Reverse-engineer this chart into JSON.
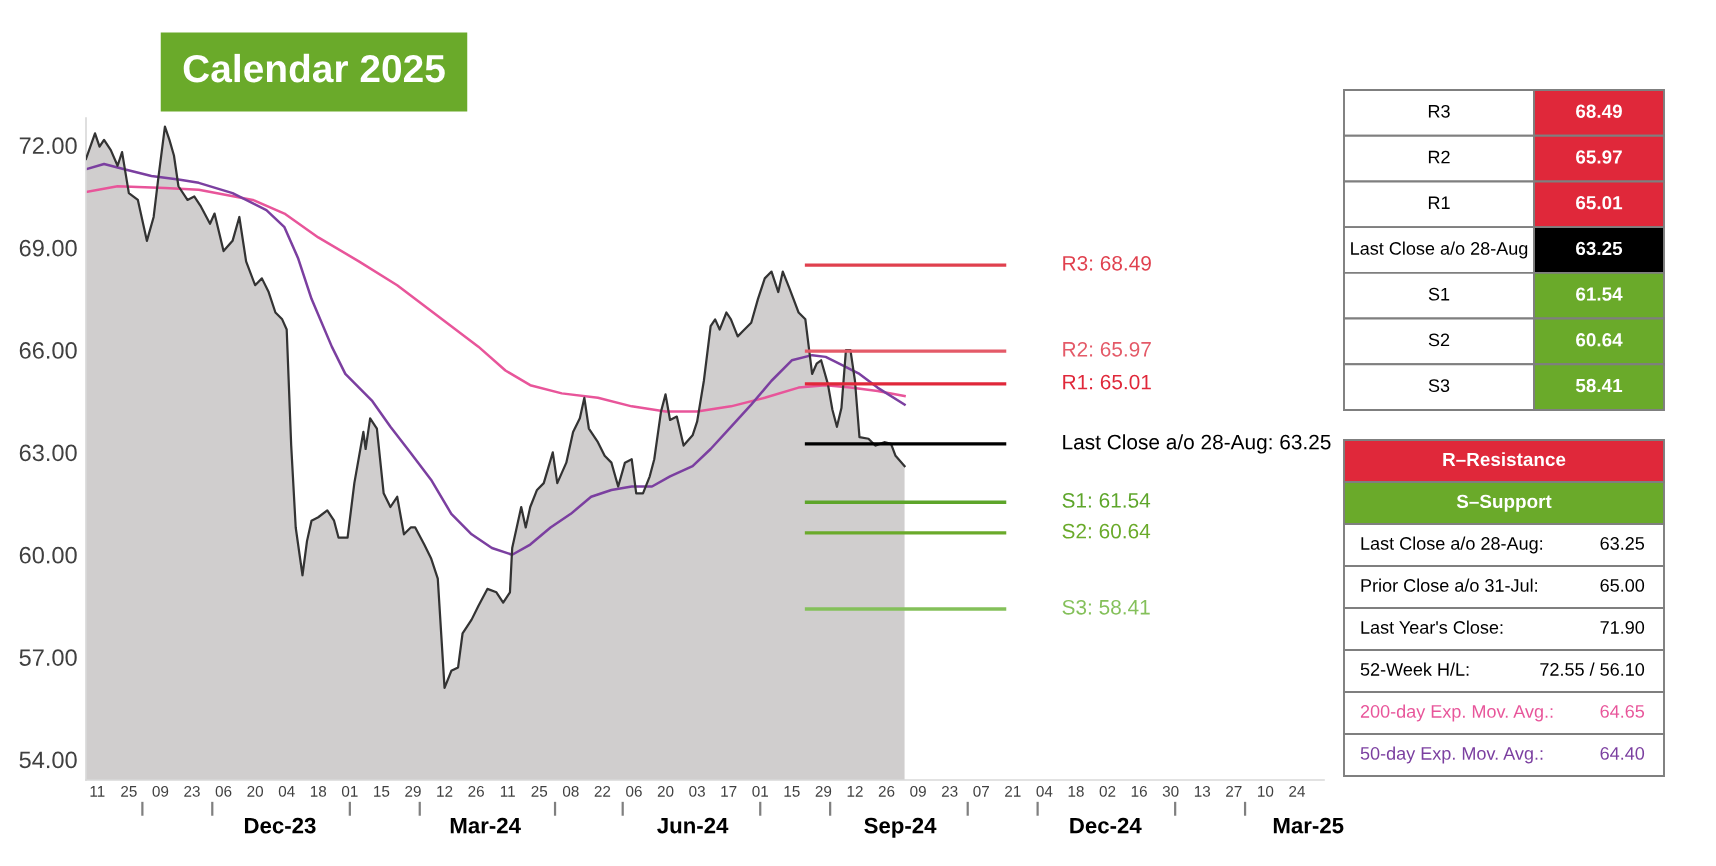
{
  "chart_data": [
    {
      "type": "area",
      "title": "Calendar 2025",
      "x": [
        "2023-09-06",
        "2023-09-10",
        "2023-09-12",
        "2023-09-14",
        "2023-09-17",
        "2023-09-20",
        "2023-09-22",
        "2023-09-25",
        "2023-09-29",
        "2023-10-03",
        "2023-10-06",
        "2023-10-08",
        "2023-10-11",
        "2023-10-13",
        "2023-10-15",
        "2023-10-17",
        "2023-10-21",
        "2023-10-24",
        "2023-10-27",
        "2023-10-31",
        "2023-11-02",
        "2023-11-06",
        "2023-11-10",
        "2023-11-13",
        "2023-11-16",
        "2023-11-20",
        "2023-11-23",
        "2023-11-26",
        "2023-11-29",
        "2023-12-02",
        "2023-12-04",
        "2023-12-06",
        "2023-12-08",
        "2023-12-11",
        "2023-12-13",
        "2023-12-15",
        "2023-12-18",
        "2023-12-22",
        "2023-12-25",
        "2023-12-27",
        "2023-12-31",
        "2024-01-03",
        "2024-01-07",
        "2024-01-08",
        "2024-01-10",
        "2024-01-13",
        "2024-01-16",
        "2024-01-19",
        "2024-01-22",
        "2024-01-25",
        "2024-01-28",
        "2024-01-30",
        "2024-02-03",
        "2024-02-06",
        "2024-02-09",
        "2024-02-12",
        "2024-02-15",
        "2024-02-18",
        "2024-02-20",
        "2024-02-24",
        "2024-02-27",
        "2024-03-02",
        "2024-03-06",
        "2024-03-09",
        "2024-03-12",
        "2024-03-13",
        "2024-03-17",
        "2024-03-19",
        "2024-03-21",
        "2024-03-24",
        "2024-03-27",
        "2024-03-31",
        "2024-04-02",
        "2024-04-06",
        "2024-04-09",
        "2024-04-12",
        "2024-04-14",
        "2024-04-16",
        "2024-04-20",
        "2024-04-23",
        "2024-04-26",
        "2024-04-29",
        "2024-05-02",
        "2024-05-05",
        "2024-05-07",
        "2024-05-10",
        "2024-05-13",
        "2024-05-15",
        "2024-05-18",
        "2024-05-20",
        "2024-05-22",
        "2024-05-25",
        "2024-05-28",
        "2024-06-01",
        "2024-06-03",
        "2024-06-06",
        "2024-06-09",
        "2024-06-11",
        "2024-06-13",
        "2024-06-16",
        "2024-06-18",
        "2024-06-21",
        "2024-06-24",
        "2024-06-27",
        "2024-06-30",
        "2024-07-03",
        "2024-07-06",
        "2024-07-09",
        "2024-07-11",
        "2024-07-14",
        "2024-07-18",
        "2024-07-21",
        "2024-07-24",
        "2024-07-26",
        "2024-07-28",
        "2024-07-31",
        "2024-08-02",
        "2024-08-04",
        "2024-08-06",
        "2024-08-08",
        "2024-08-10",
        "2024-08-12",
        "2024-08-14",
        "2024-08-18",
        "2024-08-21",
        "2024-08-25",
        "2024-08-28",
        "2024-08-30",
        "2024-09-03"
      ],
      "series": [
        {
          "type": "area",
          "color": "#d0cece",
          "values": [
            71.6,
            72.35,
            71.96,
            72.16,
            71.86,
            71.4,
            71.8,
            70.6,
            70.4,
            69.2,
            69.9,
            71.0,
            72.55,
            72.16,
            71.7,
            70.8,
            70.4,
            70.5,
            70.2,
            69.7,
            70.0,
            68.9,
            69.2,
            69.9,
            68.6,
            67.9,
            68.1,
            67.7,
            67.1,
            66.9,
            66.6,
            63.2,
            60.8,
            59.4,
            60.4,
            61.0,
            61.1,
            61.3,
            61.0,
            60.5,
            60.5,
            62.1,
            63.6,
            63.1,
            64.0,
            63.7,
            61.8,
            61.4,
            61.7,
            60.6,
            60.8,
            60.8,
            60.3,
            59.9,
            59.3,
            56.1,
            56.6,
            56.7,
            57.7,
            58.1,
            58.5,
            59.0,
            58.9,
            58.6,
            58.9,
            60.2,
            61.4,
            60.8,
            61.4,
            61.9,
            62.1,
            63.0,
            62.1,
            62.7,
            63.6,
            64.0,
            64.6,
            63.7,
            63.3,
            62.9,
            62.7,
            62.0,
            62.7,
            62.8,
            61.8,
            61.8,
            62.3,
            62.8,
            64.2,
            64.7,
            63.95,
            64.05,
            63.2,
            63.5,
            63.9,
            65.1,
            66.7,
            66.9,
            66.6,
            67.1,
            66.9,
            66.4,
            66.6,
            66.8,
            67.5,
            68.1,
            68.3,
            67.7,
            68.3,
            67.8,
            67.1,
            66.9,
            65.3,
            65.6,
            65.7,
            65.0,
            64.25,
            63.75,
            64.3,
            66.0,
            66.0,
            65.1,
            63.45,
            63.4,
            63.2,
            63.3,
            63.25,
            62.9,
            62.6
          ]
        },
        {
          "type": "line",
          "color": "#e8559a",
          "x": [
            "2023-09-06",
            "2023-09-20",
            "2023-10-11",
            "2023-10-26",
            "2023-11-19",
            "2023-12-03",
            "2023-12-18",
            "2024-01-05",
            "2024-01-22",
            "2024-02-09",
            "2024-02-27",
            "2024-03-10",
            "2024-03-21",
            "2024-04-04",
            "2024-04-20",
            "2024-05-05",
            "2024-05-20",
            "2024-06-03",
            "2024-06-18",
            "2024-07-03",
            "2024-07-18",
            "2024-07-30",
            "2024-08-10",
            "2024-08-22",
            "2024-09-03"
          ],
          "values": [
            70.63,
            70.8,
            70.75,
            70.7,
            70.4,
            70.0,
            69.3,
            68.6,
            67.9,
            67.0,
            66.1,
            65.4,
            64.97,
            64.73,
            64.6,
            64.35,
            64.2,
            64.2,
            64.35,
            64.6,
            64.9,
            64.97,
            64.9,
            64.8,
            64.65
          ]
        },
        {
          "type": "line",
          "color": "#7b3fa0",
          "x": [
            "2023-09-06",
            "2023-09-14",
            "2023-09-23",
            "2023-10-05",
            "2023-10-17",
            "2023-10-26",
            "2023-11-10",
            "2023-11-25",
            "2023-12-03",
            "2023-12-09",
            "2023-12-15",
            "2023-12-24",
            "2023-12-30",
            "2024-01-11",
            "2024-01-19",
            "2024-01-28",
            "2024-02-06",
            "2024-02-15",
            "2024-02-24",
            "2024-03-04",
            "2024-03-13",
            "2024-03-21",
            "2024-03-30",
            "2024-04-08",
            "2024-04-17",
            "2024-04-26",
            "2024-05-05",
            "2024-05-14",
            "2024-05-22",
            "2024-06-01",
            "2024-06-09",
            "2024-06-18",
            "2024-06-27",
            "2024-07-06",
            "2024-07-15",
            "2024-07-24",
            "2024-07-30",
            "2024-08-05",
            "2024-08-14",
            "2024-08-22",
            "2024-09-03"
          ],
          "values": [
            71.3,
            71.45,
            71.3,
            71.1,
            71.0,
            70.9,
            70.6,
            70.1,
            69.6,
            68.7,
            67.5,
            66.1,
            65.3,
            64.5,
            63.75,
            62.98,
            62.2,
            61.2,
            60.6,
            60.2,
            60.0,
            60.3,
            60.8,
            61.2,
            61.7,
            61.9,
            62.0,
            62.0,
            62.3,
            62.6,
            63.1,
            63.75,
            64.4,
            65.1,
            65.7,
            65.85,
            65.8,
            65.6,
            65.3,
            64.9,
            64.4
          ]
        }
      ],
      "xlim": [
        "2023-09-06",
        "2025-03-08"
      ],
      "xticks": [
        {
          "value": "2023-09-11",
          "label": "11"
        },
        {
          "value": "2023-09-25",
          "label": "25"
        },
        {
          "value": "2023-10-09",
          "label": "09"
        },
        {
          "value": "2023-10-23",
          "label": "23"
        },
        {
          "value": "2023-11-06",
          "label": "06"
        },
        {
          "value": "2023-11-20",
          "label": "20"
        },
        {
          "value": "2023-12-04",
          "label": "04"
        },
        {
          "value": "2023-12-18",
          "label": "18"
        },
        {
          "value": "2024-01-01",
          "label": "01"
        },
        {
          "value": "2024-01-15",
          "label": "15"
        },
        {
          "value": "2024-01-29",
          "label": "29"
        },
        {
          "value": "2024-02-12",
          "label": "12"
        },
        {
          "value": "2024-02-26",
          "label": "26"
        },
        {
          "value": "2024-03-11",
          "label": "11"
        },
        {
          "value": "2024-03-25",
          "label": "25"
        },
        {
          "value": "2024-04-08",
          "label": "08"
        },
        {
          "value": "2024-04-22",
          "label": "22"
        },
        {
          "value": "2024-05-06",
          "label": "06"
        },
        {
          "value": "2024-05-20",
          "label": "20"
        },
        {
          "value": "2024-06-03",
          "label": "03"
        },
        {
          "value": "2024-06-17",
          "label": "17"
        },
        {
          "value": "2024-07-01",
          "label": "01"
        },
        {
          "value": "2024-07-15",
          "label": "15"
        },
        {
          "value": "2024-07-29",
          "label": "29"
        },
        {
          "value": "2024-08-12",
          "label": "12"
        },
        {
          "value": "2024-08-26",
          "label": "26"
        },
        {
          "value": "2024-09-09",
          "label": "09"
        },
        {
          "value": "2024-09-23",
          "label": "23"
        },
        {
          "value": "2024-10-07",
          "label": "07"
        },
        {
          "value": "2024-10-21",
          "label": "21"
        },
        {
          "value": "2024-11-04",
          "label": "04"
        },
        {
          "value": "2024-11-18",
          "label": "18"
        },
        {
          "value": "2024-12-02",
          "label": "02"
        },
        {
          "value": "2024-12-16",
          "label": "16"
        },
        {
          "value": "2024-12-30",
          "label": "30"
        },
        {
          "value": "2025-01-13",
          "label": "13"
        },
        {
          "value": "2025-01-27",
          "label": "27"
        },
        {
          "value": "2025-02-10",
          "label": "10"
        },
        {
          "value": "2025-02-24",
          "label": "24"
        }
      ],
      "x2lim": [
        "2023-09-06",
        "2025-03-08"
      ],
      "x2ticks": [
        {
          "value": "2023-10-01",
          "label": null
        },
        {
          "value": "2023-11-01",
          "label": null
        },
        {
          "value": "2023-12-01",
          "label": "Dec-23"
        },
        {
          "value": "2024-01-01",
          "label": null
        },
        {
          "value": "2024-02-01",
          "label": null
        },
        {
          "value": "2024-03-01",
          "label": "Mar-24"
        },
        {
          "value": "2024-04-01",
          "label": null
        },
        {
          "value": "2024-05-01",
          "label": null
        },
        {
          "value": "2024-06-01",
          "label": "Jun-24"
        },
        {
          "value": "2024-07-01",
          "label": null
        },
        {
          "value": "2024-08-01",
          "label": null
        },
        {
          "value": "2024-09-01",
          "label": "Sep-24"
        },
        {
          "value": "2024-10-01",
          "label": null
        },
        {
          "value": "2024-11-01",
          "label": null
        },
        {
          "value": "2024-12-01",
          "label": "Dec-24"
        },
        {
          "value": "2025-01-01",
          "label": null
        },
        {
          "value": "2025-02-01",
          "label": null
        },
        {
          "value": "2025-03-01",
          "label": "Mar-25"
        }
      ],
      "ylim": [
        53.4,
        72.8
      ],
      "yticks": [
        {
          "value": 54,
          "label": "54.00"
        },
        {
          "value": 57,
          "label": "57.00"
        },
        {
          "value": 60,
          "label": "60.00"
        },
        {
          "value": 63,
          "label": "63.00"
        },
        {
          "value": 66,
          "label": "66.00"
        },
        {
          "value": 69,
          "label": "69.00"
        },
        {
          "value": 72,
          "label": "72.00"
        }
      ],
      "ref_lines": [
        {
          "axis": "y",
          "value": 68.49,
          "label": "R3: 68.49",
          "color": "#e0404e"
        },
        {
          "axis": "y",
          "value": 65.97,
          "label": "R2: 65.97",
          "color": "#e45a68"
        },
        {
          "axis": "y",
          "value": 65.01,
          "label": "R1: 65.01",
          "color": "#e0283a"
        },
        {
          "axis": "y",
          "value": 63.25,
          "label": "Last Close a/o 28-Aug: 63.25",
          "color": "#000000"
        },
        {
          "axis": "y",
          "value": 61.54,
          "label": "S1: 61.54",
          "color": "#5da52a"
        },
        {
          "axis": "y",
          "value": 60.64,
          "label": "S2: 60.64",
          "color": "#6aaa2a"
        },
        {
          "axis": "y",
          "value": 58.41,
          "label": "S3: 58.41",
          "color": "#84c05a"
        }
      ]
    },
    {
      "type": "other",
      "annotations": [
        "R3",
        "68.49",
        "R2",
        "65.97",
        "R1",
        "65.01",
        "Last Close a/o 28-Aug",
        "63.25",
        "S1",
        "61.54",
        "S2",
        "60.64",
        "S3",
        "58.41"
      ]
    },
    {
      "type": "other",
      "annotations": [
        "R–Resistance",
        "S–Support",
        "Last Close a/o 28-Aug:",
        "63.25",
        "Prior Close a/o 31-Jul:",
        "65.00",
        "Last Year's Close:",
        "71.90",
        "52-Week H/L:",
        "72.55 / 56.10",
        "200-day Exp. Mov. Avg.:",
        "64.65",
        "50-day Exp. Mov. Avg.:",
        "64.40"
      ]
    }
  ]
}
